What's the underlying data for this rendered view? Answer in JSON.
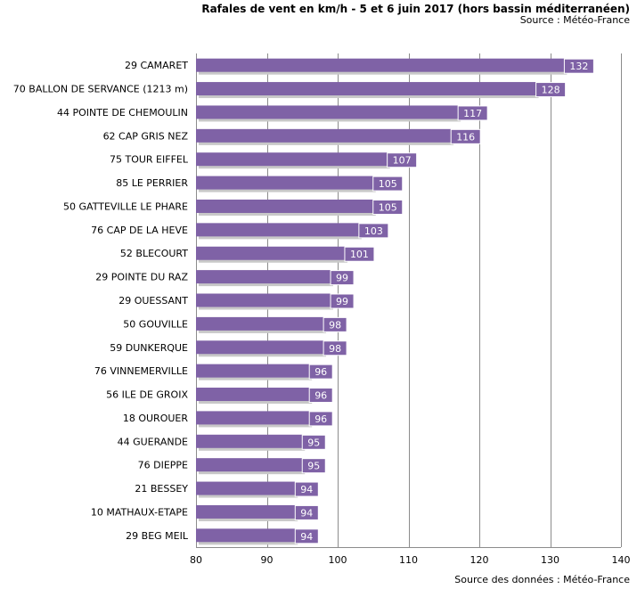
{
  "header": {
    "title": "Rafales de vent en km/h - 5 et 6 juin 2017 (hors bassin méditerranéen)",
    "source": "Source : Météo-France"
  },
  "footer": {
    "source": "Source des données : Météo-France"
  },
  "colors": {
    "bar": "#7f62a6",
    "bar_shadow": "#c8c8c8",
    "grid": "#8c8c8c",
    "label_box_fill": "#7f62a6",
    "label_box_text": "#ffffff"
  },
  "chart_data": {
    "type": "bar",
    "orientation": "horizontal",
    "title": "Rafales de vent en km/h - 5 et 6 juin 2017 (hors bassin méditerranéen)",
    "xlim": [
      80,
      140
    ],
    "xticks": [
      80,
      90,
      100,
      110,
      120,
      130,
      140
    ],
    "grid": "vertical",
    "categories": [
      "29 CAMARET",
      "70 BALLON DE SERVANCE (1213 m)",
      "44 POINTE DE CHEMOULIN",
      "62 CAP GRIS NEZ",
      "75 TOUR EIFFEL",
      "85 LE PERRIER",
      "50 GATTEVILLE LE PHARE",
      "76 CAP DE LA HEVE",
      "52 BLECOURT",
      "29 POINTE DU RAZ",
      "29 OUESSANT",
      "50 GOUVILLE",
      "59 DUNKERQUE",
      "76 VINNEMERVILLE",
      "56 ILE DE GROIX",
      "18 OUROUER",
      "44 GUERANDE",
      "76 DIEPPE",
      "21 BESSEY",
      "10 MATHAUX-ETAPE",
      "29 BEG MEIL"
    ],
    "values": [
      132,
      128,
      117,
      116,
      107,
      105,
      105,
      103,
      101,
      99,
      99,
      98,
      98,
      96,
      96,
      96,
      95,
      95,
      94,
      94,
      94
    ]
  }
}
